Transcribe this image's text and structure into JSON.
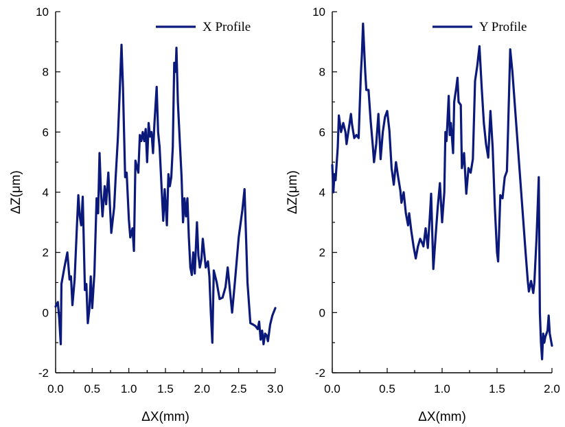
{
  "chart_data": [
    {
      "type": "line",
      "xlabel": "ΔX(mm)",
      "ylabel": "ΔZ(μm)",
      "xlim": [
        0,
        3
      ],
      "ylim": [
        -2,
        10
      ],
      "x_ticks": [
        "0.0",
        "0.5",
        "1.0",
        "1.5",
        "2.0",
        "2.5",
        "3.0"
      ],
      "y_ticks": [
        "-2",
        "0",
        "2",
        "4",
        "6",
        "8",
        "10"
      ],
      "legend_position": "top-right",
      "series": [
        {
          "name": "X Profile",
          "color": "#0b1a7a",
          "points": [
            [
              0.0,
              0.2
            ],
            [
              0.03,
              0.35
            ],
            [
              0.05,
              -0.2
            ],
            [
              0.07,
              -1.05
            ],
            [
              0.08,
              0.95
            ],
            [
              0.12,
              1.5
            ],
            [
              0.16,
              2.0
            ],
            [
              0.19,
              1.1
            ],
            [
              0.21,
              1.2
            ],
            [
              0.23,
              0.25
            ],
            [
              0.26,
              1.1
            ],
            [
              0.29,
              2.8
            ],
            [
              0.31,
              3.9
            ],
            [
              0.33,
              3.2
            ],
            [
              0.35,
              2.9
            ],
            [
              0.37,
              3.85
            ],
            [
              0.4,
              0.75
            ],
            [
              0.42,
              0.95
            ],
            [
              0.44,
              -0.35
            ],
            [
              0.46,
              0.1
            ],
            [
              0.48,
              1.2
            ],
            [
              0.5,
              0.15
            ],
            [
              0.53,
              1.3
            ],
            [
              0.56,
              3.8
            ],
            [
              0.58,
              3.3
            ],
            [
              0.6,
              5.3
            ],
            [
              0.62,
              4.0
            ],
            [
              0.64,
              3.2
            ],
            [
              0.67,
              4.2
            ],
            [
              0.69,
              3.6
            ],
            [
              0.72,
              4.65
            ],
            [
              0.76,
              2.65
            ],
            [
              0.8,
              3.5
            ],
            [
              0.82,
              4.5
            ],
            [
              0.85,
              5.8
            ],
            [
              0.87,
              7.0
            ],
            [
              0.9,
              8.9
            ],
            [
              0.92,
              7.5
            ],
            [
              0.95,
              4.5
            ],
            [
              0.97,
              4.65
            ],
            [
              1.0,
              3.1
            ],
            [
              1.02,
              2.5
            ],
            [
              1.05,
              2.8
            ],
            [
              1.07,
              2.05
            ],
            [
              1.09,
              5.05
            ],
            [
              1.13,
              4.65
            ],
            [
              1.15,
              5.9
            ],
            [
              1.17,
              5.7
            ],
            [
              1.19,
              6.0
            ],
            [
              1.21,
              5.7
            ],
            [
              1.23,
              6.1
            ],
            [
              1.25,
              5.0
            ],
            [
              1.27,
              6.3
            ],
            [
              1.29,
              5.85
            ],
            [
              1.31,
              6.0
            ],
            [
              1.33,
              5.3
            ],
            [
              1.35,
              6.3
            ],
            [
              1.38,
              7.5
            ],
            [
              1.4,
              6.0
            ],
            [
              1.42,
              5.5
            ],
            [
              1.45,
              4.0
            ],
            [
              1.47,
              3.05
            ],
            [
              1.49,
              4.1
            ],
            [
              1.52,
              2.9
            ],
            [
              1.54,
              4.6
            ],
            [
              1.56,
              4.2
            ],
            [
              1.58,
              4.5
            ],
            [
              1.6,
              5.5
            ],
            [
              1.62,
              8.3
            ],
            [
              1.64,
              8.0
            ],
            [
              1.65,
              8.8
            ],
            [
              1.67,
              7.0
            ],
            [
              1.7,
              5.5
            ],
            [
              1.72,
              4.5
            ],
            [
              1.74,
              3.0
            ],
            [
              1.76,
              3.8
            ],
            [
              1.78,
              3.2
            ],
            [
              1.8,
              3.8
            ],
            [
              1.82,
              2.5
            ],
            [
              1.84,
              1.5
            ],
            [
              1.86,
              1.25
            ],
            [
              1.88,
              2.0
            ],
            [
              1.9,
              1.3
            ],
            [
              1.93,
              3.0
            ],
            [
              1.95,
              1.9
            ],
            [
              1.97,
              1.5
            ],
            [
              1.99,
              1.75
            ],
            [
              2.01,
              2.45
            ],
            [
              2.05,
              1.5
            ],
            [
              2.08,
              1.7
            ],
            [
              2.1,
              1.2
            ],
            [
              2.12,
              0.0
            ],
            [
              2.14,
              -1.0
            ],
            [
              2.16,
              1.4
            ],
            [
              2.2,
              1.0
            ],
            [
              2.24,
              0.45
            ],
            [
              2.28,
              0.5
            ],
            [
              2.32,
              0.85
            ],
            [
              2.35,
              1.5
            ],
            [
              2.38,
              0.75
            ],
            [
              2.41,
              0.0
            ],
            [
              2.45,
              1.05
            ],
            [
              2.5,
              2.5
            ],
            [
              2.55,
              3.4
            ],
            [
              2.58,
              4.1
            ],
            [
              2.62,
              1.0
            ],
            [
              2.66,
              -0.35
            ],
            [
              2.7,
              -0.4
            ],
            [
              2.73,
              -0.45
            ],
            [
              2.76,
              -0.55
            ],
            [
              2.78,
              -0.3
            ],
            [
              2.8,
              -0.9
            ],
            [
              2.82,
              -0.6
            ],
            [
              2.84,
              -1.05
            ],
            [
              2.86,
              -0.7
            ],
            [
              2.88,
              -0.75
            ],
            [
              2.9,
              -0.95
            ],
            [
              2.93,
              -0.4
            ],
            [
              2.96,
              -0.1
            ],
            [
              3.0,
              0.15
            ]
          ]
        }
      ]
    },
    {
      "type": "line",
      "xlabel": "ΔX(mm)",
      "ylabel": "ΔZ(μm)",
      "xlim": [
        0,
        2
      ],
      "ylim": [
        -2,
        10
      ],
      "x_ticks": [
        "0.0",
        "0.5",
        "1.0",
        "1.5",
        "2.0"
      ],
      "y_ticks": [
        "-2",
        "0",
        "2",
        "4",
        "6",
        "8",
        "10"
      ],
      "legend_position": "top-right",
      "series": [
        {
          "name": "Y Profile",
          "color": "#0b1a7a",
          "points": [
            [
              0.0,
              4.9
            ],
            [
              0.01,
              4.0
            ],
            [
              0.02,
              4.6
            ],
            [
              0.03,
              4.4
            ],
            [
              0.05,
              5.5
            ],
            [
              0.06,
              6.55
            ],
            [
              0.08,
              6.0
            ],
            [
              0.1,
              6.3
            ],
            [
              0.12,
              6.0
            ],
            [
              0.13,
              5.6
            ],
            [
              0.15,
              6.1
            ],
            [
              0.17,
              6.6
            ],
            [
              0.18,
              6.25
            ],
            [
              0.2,
              5.8
            ],
            [
              0.22,
              5.9
            ],
            [
              0.24,
              5.8
            ],
            [
              0.26,
              7.9
            ],
            [
              0.27,
              8.6
            ],
            [
              0.28,
              9.6
            ],
            [
              0.3,
              8.0
            ],
            [
              0.31,
              7.4
            ],
            [
              0.33,
              7.4
            ],
            [
              0.35,
              6.35
            ],
            [
              0.37,
              5.5
            ],
            [
              0.38,
              5.0
            ],
            [
              0.4,
              5.6
            ],
            [
              0.42,
              6.6
            ],
            [
              0.44,
              5.1
            ],
            [
              0.46,
              6.0
            ],
            [
              0.48,
              6.5
            ],
            [
              0.5,
              6.7
            ],
            [
              0.52,
              6.05
            ],
            [
              0.54,
              4.8
            ],
            [
              0.56,
              4.25
            ],
            [
              0.58,
              5.0
            ],
            [
              0.6,
              4.5
            ],
            [
              0.62,
              4.05
            ],
            [
              0.63,
              3.65
            ],
            [
              0.65,
              4.0
            ],
            [
              0.67,
              3.3
            ],
            [
              0.69,
              2.9
            ],
            [
              0.7,
              3.3
            ],
            [
              0.72,
              2.7
            ],
            [
              0.74,
              2.2
            ],
            [
              0.76,
              1.8
            ],
            [
              0.78,
              2.2
            ],
            [
              0.8,
              2.45
            ],
            [
              0.82,
              2.3
            ],
            [
              0.83,
              2.2
            ],
            [
              0.85,
              2.8
            ],
            [
              0.87,
              2.15
            ],
            [
              0.89,
              3.3
            ],
            [
              0.9,
              3.95
            ],
            [
              0.92,
              1.45
            ],
            [
              0.94,
              2.5
            ],
            [
              0.96,
              3.5
            ],
            [
              0.98,
              4.3
            ],
            [
              1.0,
              3.0
            ],
            [
              1.02,
              4.0
            ],
            [
              1.03,
              6.0
            ],
            [
              1.04,
              5.7
            ],
            [
              1.06,
              7.2
            ],
            [
              1.07,
              5.9
            ],
            [
              1.08,
              6.3
            ],
            [
              1.1,
              5.3
            ],
            [
              1.11,
              7.0
            ],
            [
              1.13,
              7.5
            ],
            [
              1.14,
              7.8
            ],
            [
              1.15,
              7.0
            ],
            [
              1.17,
              6.9
            ],
            [
              1.18,
              4.8
            ],
            [
              1.2,
              5.3
            ],
            [
              1.22,
              3.95
            ],
            [
              1.24,
              4.8
            ],
            [
              1.26,
              4.65
            ],
            [
              1.28,
              5.1
            ],
            [
              1.3,
              7.7
            ],
            [
              1.32,
              8.2
            ],
            [
              1.34,
              8.85
            ],
            [
              1.36,
              7.5
            ],
            [
              1.38,
              6.3
            ],
            [
              1.4,
              5.6
            ],
            [
              1.42,
              5.15
            ],
            [
              1.44,
              6.7
            ],
            [
              1.46,
              5.5
            ],
            [
              1.48,
              3.5
            ],
            [
              1.5,
              2.0
            ],
            [
              1.51,
              1.7
            ],
            [
              1.53,
              3.9
            ],
            [
              1.55,
              3.8
            ],
            [
              1.57,
              4.5
            ],
            [
              1.59,
              4.7
            ],
            [
              1.6,
              6.0
            ],
            [
              1.62,
              8.75
            ],
            [
              1.64,
              8.0
            ],
            [
              1.66,
              7.0
            ],
            [
              1.68,
              6.0
            ],
            [
              1.7,
              5.0
            ],
            [
              1.72,
              4.0
            ],
            [
              1.74,
              3.0
            ],
            [
              1.76,
              2.0
            ],
            [
              1.78,
              1.05
            ],
            [
              1.79,
              0.7
            ],
            [
              1.81,
              1.05
            ],
            [
              1.82,
              0.85
            ],
            [
              1.83,
              0.65
            ],
            [
              1.84,
              1.0
            ],
            [
              1.86,
              2.5
            ],
            [
              1.88,
              4.5
            ],
            [
              1.89,
              0.0
            ],
            [
              1.9,
              -1.0
            ],
            [
              1.91,
              -1.55
            ],
            [
              1.92,
              -0.7
            ],
            [
              1.93,
              -1.0
            ],
            [
              1.94,
              -0.8
            ],
            [
              1.96,
              -0.6
            ],
            [
              1.97,
              -0.1
            ],
            [
              1.98,
              -0.7
            ],
            [
              2.0,
              -1.1
            ]
          ]
        }
      ]
    }
  ]
}
